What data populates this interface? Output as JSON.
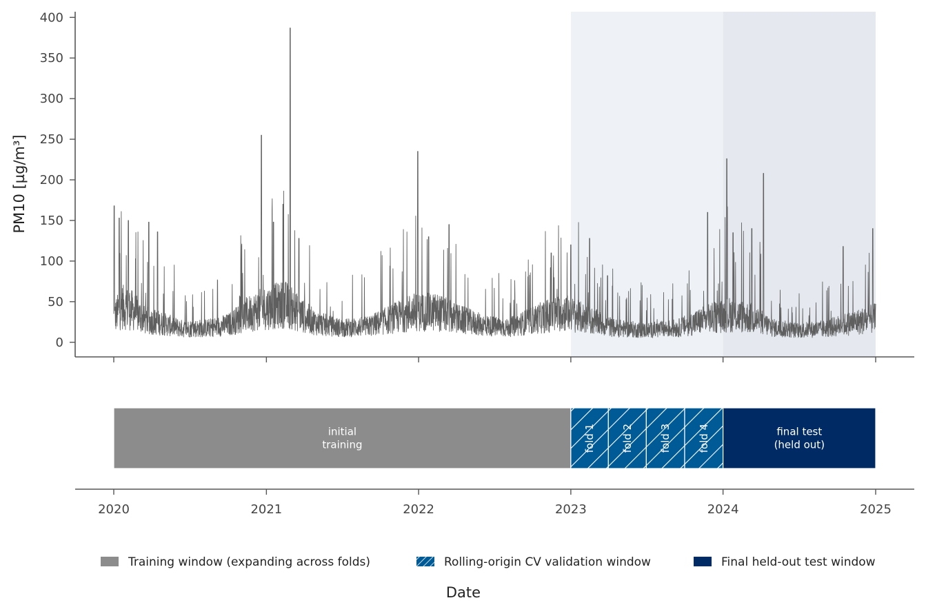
{
  "chart_data": [
    {
      "type": "line",
      "ylabel": "PM10 [µg/m³]",
      "ylim": [
        -18,
        407
      ],
      "yticks": [
        0,
        50,
        100,
        150,
        200,
        250,
        300,
        350,
        400
      ],
      "xlim": [
        "2019-09-30",
        "2025-04-23"
      ],
      "x_ticks": [
        "2020",
        "2021",
        "2022",
        "2023",
        "2024",
        "2025"
      ],
      "x_tick_dates": [
        "2020-01-01",
        "2021-01-01",
        "2022-01-01",
        "2023-01-01",
        "2024-01-01",
        "2025-01-01"
      ],
      "shaded_regions": [
        {
          "start": "2023-01-01",
          "end": "2024-01-01",
          "color": "#eef2f6"
        },
        {
          "start": "2024-01-01",
          "end": "2025-01-01",
          "color": "#e5e9ef"
        }
      ],
      "series": [
        {
          "color": "#5f5f5f",
          "profile": [
            {
              "x": "2020-01-01",
              "y": 30
            },
            {
              "x": "2020-01-20",
              "y": 45
            },
            {
              "x": "2020-02-15",
              "y": 40
            },
            {
              "x": "2020-03-15",
              "y": 28
            },
            {
              "x": "2020-04-15",
              "y": 25
            },
            {
              "x": "2020-06-15",
              "y": 17
            },
            {
              "x": "2020-08-15",
              "y": 18
            },
            {
              "x": "2020-10-01",
              "y": 22
            },
            {
              "x": "2020-11-15",
              "y": 35
            },
            {
              "x": "2020-12-20",
              "y": 42
            },
            {
              "x": "2021-02-15",
              "y": 48
            },
            {
              "x": "2021-03-15",
              "y": 38
            },
            {
              "x": "2021-05-01",
              "y": 24
            },
            {
              "x": "2021-07-01",
              "y": 18
            },
            {
              "x": "2021-09-01",
              "y": 20
            },
            {
              "x": "2021-11-01",
              "y": 30
            },
            {
              "x": "2021-12-15",
              "y": 38
            },
            {
              "x": "2022-02-15",
              "y": 38
            },
            {
              "x": "2022-04-01",
              "y": 30
            },
            {
              "x": "2022-06-01",
              "y": 22
            },
            {
              "x": "2022-08-01",
              "y": 18
            },
            {
              "x": "2022-10-15",
              "y": 30
            },
            {
              "x": "2022-12-15",
              "y": 38
            },
            {
              "x": "2023-02-15",
              "y": 28
            },
            {
              "x": "2023-04-15",
              "y": 18
            },
            {
              "x": "2023-07-01",
              "y": 15
            },
            {
              "x": "2023-09-15",
              "y": 18
            },
            {
              "x": "2023-11-15",
              "y": 28
            },
            {
              "x": "2024-01-15",
              "y": 35
            },
            {
              "x": "2024-03-15",
              "y": 30
            },
            {
              "x": "2024-05-01",
              "y": 18
            },
            {
              "x": "2024-07-01",
              "y": 15
            },
            {
              "x": "2024-09-01",
              "y": 17
            },
            {
              "x": "2024-11-01",
              "y": 24
            },
            {
              "x": "2025-01-01",
              "y": 30
            }
          ],
          "peaks": [
            {
              "x": "2020-01-02",
              "y": 168
            },
            {
              "x": "2020-01-14",
              "y": 153
            },
            {
              "x": "2020-02-05",
              "y": 150
            },
            {
              "x": "2020-03-25",
              "y": 148
            },
            {
              "x": "2020-04-15",
              "y": 136
            },
            {
              "x": "2020-12-20",
              "y": 255
            },
            {
              "x": "2021-01-18",
              "y": 148
            },
            {
              "x": "2021-02-10",
              "y": 170
            },
            {
              "x": "2021-02-27",
              "y": 387
            },
            {
              "x": "2021-03-20",
              "y": 128
            },
            {
              "x": "2021-12-30",
              "y": 235
            },
            {
              "x": "2022-01-25",
              "y": 130
            },
            {
              "x": "2022-03-15",
              "y": 145
            },
            {
              "x": "2022-11-15",
              "y": 110
            },
            {
              "x": "2023-01-01",
              "y": 120
            },
            {
              "x": "2023-02-15",
              "y": 128
            },
            {
              "x": "2023-03-30",
              "y": 82
            },
            {
              "x": "2023-11-25",
              "y": 160
            },
            {
              "x": "2024-01-10",
              "y": 226
            },
            {
              "x": "2024-01-25",
              "y": 135
            },
            {
              "x": "2024-03-10",
              "y": 140
            },
            {
              "x": "2024-04-07",
              "y": 208
            },
            {
              "x": "2024-10-15",
              "y": 118
            },
            {
              "x": "2024-12-25",
              "y": 140
            }
          ]
        }
      ]
    },
    {
      "type": "timeline",
      "xlabel": "Date",
      "segments": [
        {
          "start": "2020-01-01",
          "end": "2023-01-01",
          "label": "initial\ntraining",
          "color": "#8c8c8c",
          "hatch": false,
          "rotated": false
        },
        {
          "start": "2023-01-01",
          "end": "2023-04-01",
          "label": "fold 1",
          "color": "#005a96",
          "hatch": true,
          "rotated": true
        },
        {
          "start": "2023-04-01",
          "end": "2023-07-01",
          "label": "fold 2",
          "color": "#005a96",
          "hatch": true,
          "rotated": true
        },
        {
          "start": "2023-07-01",
          "end": "2023-10-01",
          "label": "fold 3",
          "color": "#005a96",
          "hatch": true,
          "rotated": true
        },
        {
          "start": "2023-10-01",
          "end": "2024-01-01",
          "label": "fold 4",
          "color": "#005a96",
          "hatch": true,
          "rotated": true
        },
        {
          "start": "2024-01-01",
          "end": "2025-01-01",
          "label": "final test\n(held out)",
          "color": "#002a64",
          "hatch": false,
          "rotated": false
        }
      ]
    }
  ],
  "legend": {
    "placement": "bottom",
    "items": [
      {
        "label": "Training window (expanding across folds)",
        "color": "#8c8c8c",
        "hatch": false
      },
      {
        "label": "Rolling-origin CV validation window",
        "color": "#005a96",
        "hatch": true
      },
      {
        "label": "Final held-out test window",
        "color": "#002a64",
        "hatch": false
      }
    ]
  }
}
